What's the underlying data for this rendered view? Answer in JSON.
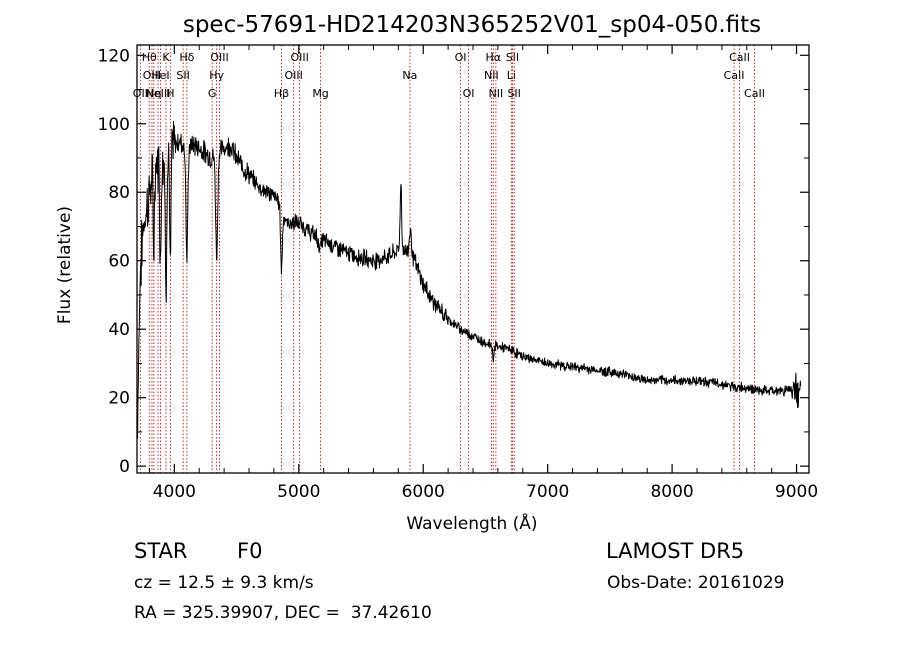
{
  "chart_data": {
    "type": "line",
    "title": "spec-57691-HD214203N365252V01_sp04-050.fits",
    "xlabel": "Wavelength (Å)",
    "ylabel": "Flux (relative)",
    "xlim": [
      3700,
      9100
    ],
    "ylim": [
      -2,
      123
    ],
    "xticks": [
      4000,
      5000,
      6000,
      7000,
      8000,
      9000
    ],
    "xtick_labels": [
      "4000",
      "5000",
      "6000",
      "7000",
      "8000",
      "9000"
    ],
    "yticks": [
      0,
      20,
      40,
      60,
      80,
      100,
      120
    ],
    "ytick_labels": [
      "0",
      "20",
      "40",
      "60",
      "80",
      "100",
      "120"
    ],
    "line_color": "#000000",
    "marker_color": "#b00000",
    "continuum": [
      [
        3700,
        5
      ],
      [
        3725,
        55
      ],
      [
        3750,
        70
      ],
      [
        3800,
        80
      ],
      [
        3850,
        88
      ],
      [
        3900,
        90
      ],
      [
        3950,
        92
      ],
      [
        4000,
        94
      ],
      [
        4050,
        95
      ],
      [
        4100,
        92
      ],
      [
        4150,
        94
      ],
      [
        4200,
        93
      ],
      [
        4300,
        90
      ],
      [
        4400,
        93
      ],
      [
        4450,
        94
      ],
      [
        4500,
        90
      ],
      [
        4600,
        85
      ],
      [
        4700,
        81
      ],
      [
        4800,
        79
      ],
      [
        4850,
        77
      ],
      [
        4900,
        71
      ],
      [
        5000,
        71
      ],
      [
        5100,
        68
      ],
      [
        5200,
        66
      ],
      [
        5400,
        62
      ],
      [
        5600,
        60
      ],
      [
        5700,
        61
      ],
      [
        5800,
        63
      ],
      [
        5900,
        63
      ],
      [
        6000,
        53
      ],
      [
        6100,
        47
      ],
      [
        6200,
        43
      ],
      [
        6300,
        40
      ],
      [
        6400,
        38
      ],
      [
        6500,
        36
      ],
      [
        6600,
        35
      ],
      [
        6700,
        34
      ],
      [
        6800,
        32
      ],
      [
        7000,
        30
      ],
      [
        7200,
        29
      ],
      [
        7400,
        28
      ],
      [
        7600,
        27
      ],
      [
        7700,
        26
      ],
      [
        7800,
        25
      ],
      [
        8000,
        25
      ],
      [
        8200,
        25
      ],
      [
        8400,
        24
      ],
      [
        8500,
        23
      ],
      [
        8600,
        23
      ],
      [
        8700,
        22
      ],
      [
        8800,
        22
      ],
      [
        8900,
        22
      ],
      [
        8950,
        23
      ],
      [
        9000,
        22
      ],
      [
        9050,
        20
      ]
    ],
    "absorption_features": [
      [
        3835,
        22,
        5
      ],
      [
        3889,
        32,
        5
      ],
      [
        3933,
        45,
        5
      ],
      [
        3968,
        38,
        5
      ],
      [
        4101,
        32,
        7
      ],
      [
        4340,
        30,
        8
      ],
      [
        4861,
        18,
        7
      ],
      [
        5169,
        3,
        10
      ],
      [
        5890,
        2,
        8
      ],
      [
        6563,
        4,
        6
      ]
    ],
    "emission_features": [
      [
        5820,
        20,
        6
      ],
      [
        5895,
        8,
        8
      ]
    ],
    "line_markers": [
      {
        "wavelength": 3727,
        "label": "OII",
        "tier": 2
      },
      {
        "wavelength": 3798,
        "label": "Hθ",
        "tier": 0
      },
      {
        "wavelength": 3820,
        "label": "OIII",
        "tier": 1
      },
      {
        "wavelength": 3835,
        "label": "Hη",
        "tier": 2
      },
      {
        "wavelength": 3869,
        "label": "NeIII",
        "tier": 2
      },
      {
        "wavelength": 3889,
        "label": "HeI",
        "tier": 1
      },
      {
        "wavelength": 3933,
        "label": "K",
        "tier": 0
      },
      {
        "wavelength": 3968,
        "label": "H",
        "tier": 2
      },
      {
        "wavelength": 4071,
        "label": "SII",
        "tier": 1
      },
      {
        "wavelength": 4101,
        "label": "Hδ",
        "tier": 0
      },
      {
        "wavelength": 4304,
        "label": "G",
        "tier": 2
      },
      {
        "wavelength": 4340,
        "label": "Hγ",
        "tier": 1
      },
      {
        "wavelength": 4363,
        "label": "OIII",
        "tier": 0
      },
      {
        "wavelength": 4861,
        "label": "Hβ",
        "tier": 2
      },
      {
        "wavelength": 4959,
        "label": "OIII",
        "tier": 1
      },
      {
        "wavelength": 5007,
        "label": "OIII",
        "tier": 0
      },
      {
        "wavelength": 5175,
        "label": "Mg",
        "tier": 2
      },
      {
        "wavelength": 5893,
        "label": "Na",
        "tier": 1
      },
      {
        "wavelength": 6300,
        "label": "OI",
        "tier": 0
      },
      {
        "wavelength": 6364,
        "label": "OI",
        "tier": 2
      },
      {
        "wavelength": 6548,
        "label": "NII",
        "tier": 1
      },
      {
        "wavelength": 6563,
        "label": "Hα",
        "tier": 0
      },
      {
        "wavelength": 6584,
        "label": "NII",
        "tier": 2
      },
      {
        "wavelength": 6708,
        "label": "Li",
        "tier": 1
      },
      {
        "wavelength": 6717,
        "label": "SII",
        "tier": 0
      },
      {
        "wavelength": 6731,
        "label": "SII",
        "tier": 2
      },
      {
        "wavelength": 8498,
        "label": "CaII",
        "tier": 1
      },
      {
        "wavelength": 8542,
        "label": "CaII",
        "tier": 0
      },
      {
        "wavelength": 8662,
        "label": "CaII",
        "tier": 2
      }
    ]
  },
  "info": {
    "class_label": "STAR",
    "subclass": "F0",
    "survey": "LAMOST DR5",
    "cz": "cz = 12.5 ± 9.3 km/s",
    "obs_date": "Obs-Date: 20161029",
    "coords": "RA = 325.39907, DEC =  37.42610"
  }
}
